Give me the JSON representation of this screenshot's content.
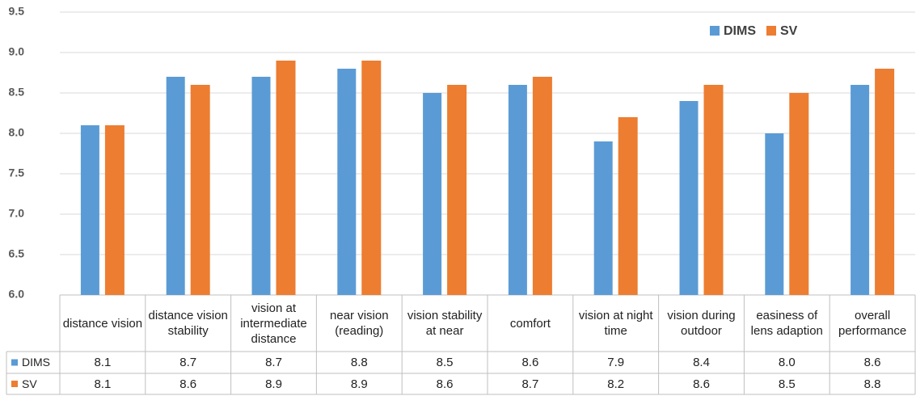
{
  "chart_data": {
    "type": "bar",
    "categories": [
      "distance vision",
      "distance vision stability",
      "vision at intermediate distance",
      "near vision (reading)",
      "vision stability at near",
      "comfort",
      "vision at night time",
      "vision during outdoor",
      "easiness of lens adaption",
      "overall performance"
    ],
    "series": [
      {
        "name": "DIMS",
        "color": "#5b9bd5",
        "values": [
          8.1,
          8.7,
          8.7,
          8.8,
          8.5,
          8.6,
          7.9,
          8.4,
          8.0,
          8.6
        ],
        "value_labels": [
          "8.1",
          "8.7",
          "8.7",
          "8.8",
          "8.5",
          "8.6",
          "7.9",
          "8.4",
          "8.0",
          "8.6"
        ]
      },
      {
        "name": "SV",
        "color": "#ed7d31",
        "values": [
          8.1,
          8.6,
          8.9,
          8.9,
          8.6,
          8.7,
          8.2,
          8.6,
          8.5,
          8.8
        ],
        "value_labels": [
          "8.1",
          "8.6",
          "8.9",
          "8.9",
          "8.6",
          "8.7",
          "8.2",
          "8.6",
          "8.5",
          "8.8"
        ]
      }
    ],
    "ylim": [
      6,
      9.5
    ],
    "yticks": [
      {
        "value": 6,
        "label": "6.0"
      },
      6.5,
      {
        "value": 7,
        "label": "7.0"
      },
      7.5,
      {
        "value": 8,
        "label": "8.0"
      },
      8.5,
      {
        "value": 9,
        "label": "9.0"
      },
      9.5
    ],
    "grid": true,
    "legend": "top-right"
  }
}
